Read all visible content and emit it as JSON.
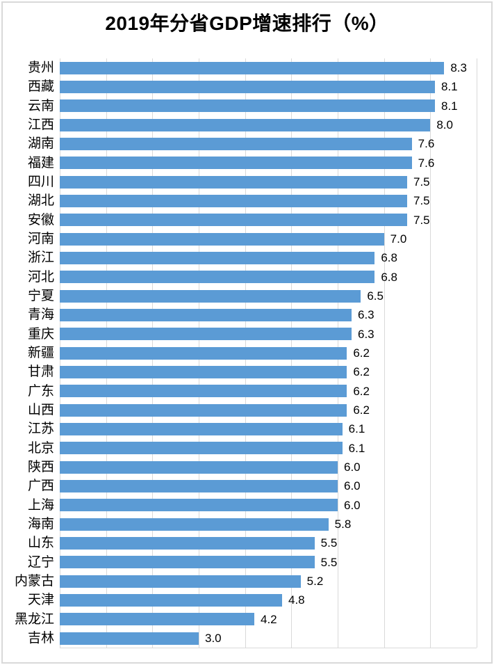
{
  "title": "2019年分省GDP增速排行（%）",
  "colors": {
    "bar": "#5B9BD5",
    "gridline": "#D9D9D9",
    "frame": "#D9D9D9",
    "text": "#000000",
    "background": "#FFFFFF"
  },
  "chart_data": {
    "type": "bar",
    "orientation": "horizontal",
    "title": "2019年分省GDP增速排行（%）",
    "categories": [
      "贵州",
      "西藏",
      "云南",
      "江西",
      "湖南",
      "福建",
      "四川",
      "湖北",
      "安徽",
      "河南",
      "浙江",
      "河北",
      "宁夏",
      "青海",
      "重庆",
      "新疆",
      "甘肃",
      "广东",
      "山西",
      "江苏",
      "北京",
      "陕西",
      "广西",
      "上海",
      "海南",
      "山东",
      "辽宁",
      "内蒙古",
      "天津",
      "黑龙江",
      "吉林"
    ],
    "values": [
      8.3,
      8.1,
      8.1,
      8.0,
      7.6,
      7.6,
      7.5,
      7.5,
      7.5,
      7.0,
      6.8,
      6.8,
      6.5,
      6.3,
      6.3,
      6.2,
      6.2,
      6.2,
      6.2,
      6.1,
      6.1,
      6.0,
      6.0,
      6.0,
      5.8,
      5.5,
      5.5,
      5.2,
      4.8,
      4.2,
      3.0
    ],
    "xlabel": "",
    "ylabel": "",
    "xlim": [
      0,
      9
    ],
    "gridline_interval": 1.0,
    "grid": "vertical",
    "legend": "none",
    "value_label_format": "one_decimal",
    "value_label_position": "end_of_bar"
  }
}
